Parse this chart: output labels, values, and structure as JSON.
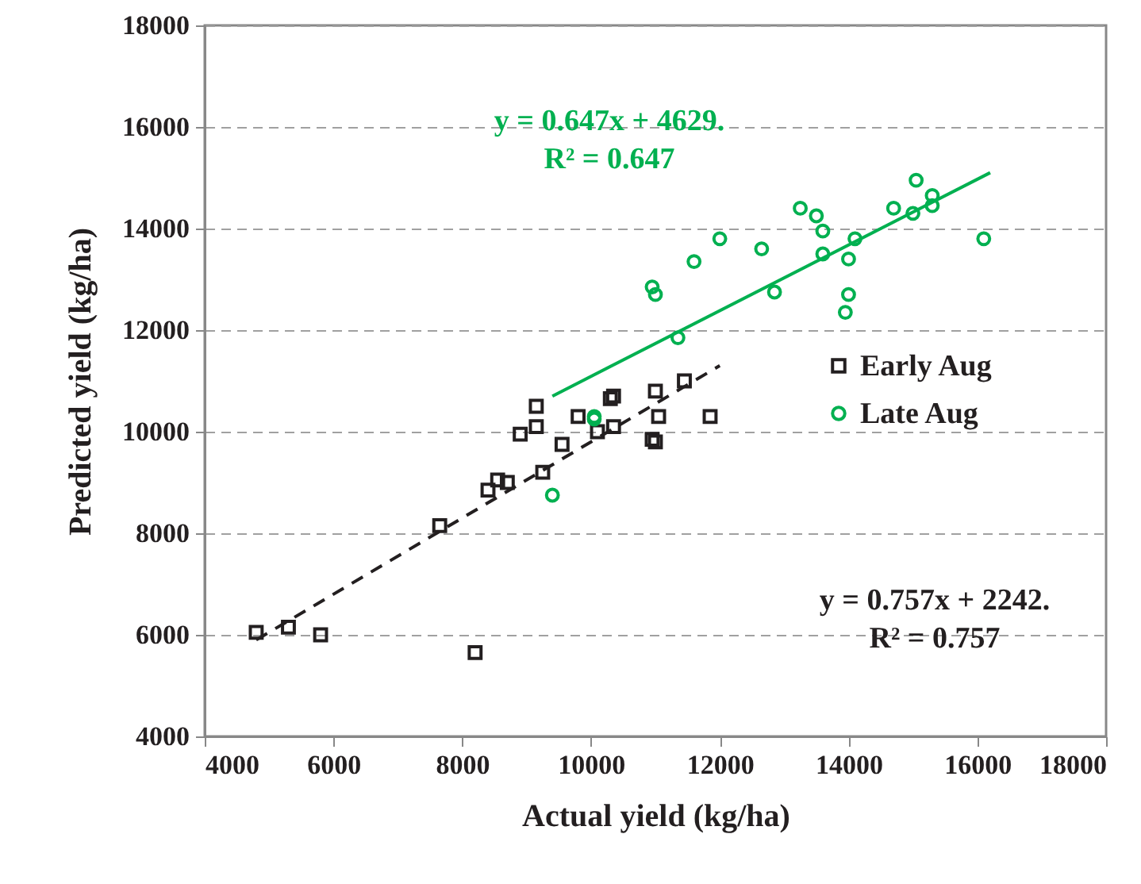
{
  "chart_data": {
    "type": "scatter",
    "xlabel": "Actual yield (kg/ha)",
    "ylabel": "Predicted yield (kg/ha)",
    "xlim": [
      4000,
      18000
    ],
    "xticks": [
      4000,
      6000,
      8000,
      10000,
      12000,
      14000,
      16000,
      18000
    ],
    "ylim": [
      4000,
      18000
    ],
    "yticks": [
      4000,
      6000,
      8000,
      10000,
      12000,
      14000,
      16000,
      18000
    ],
    "grid": "y",
    "legend": "right",
    "series": [
      {
        "name": "Early Aug",
        "color": "#231f20",
        "marker": "square",
        "x": [
          4800,
          5300,
          5800,
          7650,
          8200,
          8400,
          8550,
          8700,
          8900,
          9150,
          9150,
          9250,
          9550,
          9800,
          10100,
          10300,
          10350,
          10350,
          11000,
          11050,
          10950,
          11000,
          11450,
          11850
        ],
        "values": [
          6050,
          6150,
          6000,
          8150,
          5650,
          8850,
          9050,
          9000,
          9950,
          10100,
          10500,
          9200,
          9750,
          10300,
          10000,
          10650,
          10700,
          10100,
          10800,
          10300,
          9850,
          9800,
          11000,
          10300
        ]
      },
      {
        "name": "Late Aug",
        "color": "#00b050",
        "marker": "circle",
        "x": [
          9400,
          10050,
          10050,
          11350,
          10950,
          11000,
          11600,
          12000,
          12650,
          12850,
          13600,
          14000,
          14000,
          13950,
          14100,
          13600,
          13500,
          13250,
          14700,
          15000,
          16100,
          15050,
          15300,
          15300
        ],
        "values": [
          8750,
          10300,
          10250,
          11850,
          12850,
          12700,
          13350,
          13800,
          13600,
          12750,
          13500,
          13400,
          12700,
          12350,
          13800,
          13950,
          14250,
          14400,
          14400,
          14300,
          13800,
          14950,
          14650,
          14450
        ]
      },
      {
        "type": "line",
        "color": "#231f20",
        "line_style": "dashed",
        "x": [
          4800,
          12000
        ],
        "values": [
          5900,
          11300
        ]
      },
      {
        "type": "line",
        "color": "#00b050",
        "line_style": "solid",
        "x": [
          9400,
          16200
        ],
        "values": [
          10700,
          15100
        ]
      }
    ],
    "annotations": [
      "y = 0.647x + 4629.",
      "R² = 0.647",
      "y = 0.757x + 2242.",
      "R² = 0.757"
    ]
  }
}
